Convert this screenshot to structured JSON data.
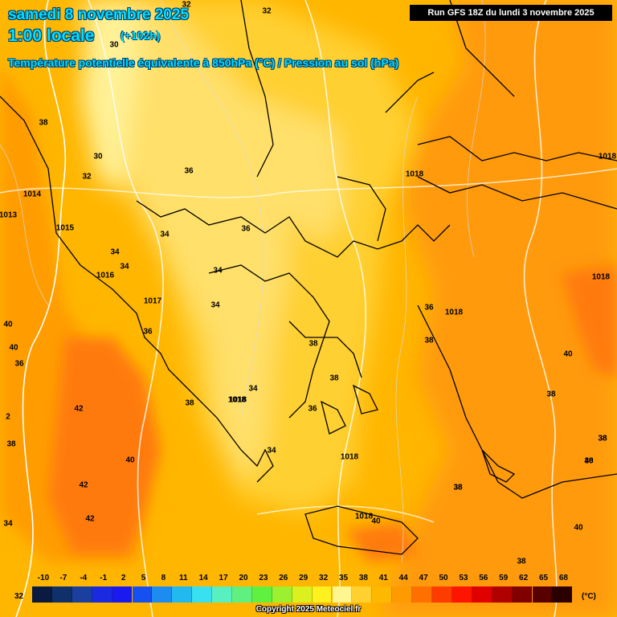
{
  "header": {
    "date": "samedi 8 novembre 2025",
    "time": "1:00 locale",
    "offset": "(+102h)",
    "parameter": "Température potentielle équivalente à 850hPa (°C) / Pression au sol (hPa)"
  },
  "run_info": "Run GFS 18Z du lundi 3 novembre 2025",
  "copyright": "Copyright 2025 Meteociel.fr",
  "legend": {
    "unit": "(°C)",
    "corner_value": "32",
    "ticks": [
      "-10",
      "-7",
      "-4",
      "-1",
      "2",
      "5",
      "8",
      "11",
      "14",
      "17",
      "20",
      "23",
      "26",
      "29",
      "32",
      "35",
      "38",
      "41",
      "44",
      "47",
      "50",
      "53",
      "56",
      "59",
      "62",
      "65",
      "68"
    ],
    "colors": [
      "#0a1a40",
      "#10306a",
      "#1a3fa0",
      "#1b2ae0",
      "#1a1af0",
      "#1650f0",
      "#1c8cf0",
      "#22b8f0",
      "#38e0f0",
      "#58f0c0",
      "#60f080",
      "#60f040",
      "#9cf030",
      "#dcf020",
      "#fff020",
      "#fff690",
      "#ffd030",
      "#ffb800",
      "#ff9a00",
      "#ff7000",
      "#ff3c00",
      "#ff1400",
      "#e00000",
      "#b00000",
      "#800000",
      "#580000",
      "#2a0000"
    ]
  },
  "map_labels": {
    "theta_e": [
      {
        "text": "32"
      },
      {
        "text": "32"
      },
      {
        "text": "38"
      },
      {
        "text": "30"
      },
      {
        "text": "32"
      },
      {
        "text": "30"
      },
      {
        "text": "36"
      },
      {
        "text": "34"
      },
      {
        "text": "36"
      },
      {
        "text": "34"
      },
      {
        "text": "34"
      },
      {
        "text": "34"
      },
      {
        "text": "34"
      },
      {
        "text": "36"
      },
      {
        "text": "38"
      },
      {
        "text": "36"
      },
      {
        "text": "38"
      },
      {
        "text": "34"
      },
      {
        "text": "36"
      },
      {
        "text": "38"
      },
      {
        "text": "40"
      },
      {
        "text": "38"
      },
      {
        "text": "38"
      },
      {
        "text": "40"
      },
      {
        "text": "42"
      },
      {
        "text": "40"
      },
      {
        "text": "42"
      },
      {
        "text": "42"
      },
      {
        "text": "38"
      },
      {
        "text": "40"
      },
      {
        "text": "38"
      },
      {
        "text": "38"
      },
      {
        "text": "38"
      },
      {
        "text": "34"
      },
      {
        "text": "40"
      },
      {
        "text": "36"
      },
      {
        "text": "2"
      },
      {
        "text": "40"
      },
      {
        "text": "38"
      },
      {
        "text": "38"
      },
      {
        "text": "38"
      },
      {
        "text": "40"
      }
    ],
    "pressure": [
      {
        "text": "1014"
      },
      {
        "text": "1015"
      },
      {
        "text": "1016"
      },
      {
        "text": "1017"
      },
      {
        "text": "1013"
      },
      {
        "text": "1018"
      },
      {
        "text": "1018"
      },
      {
        "text": "1018"
      },
      {
        "text": "1018"
      },
      {
        "text": "1018"
      },
      {
        "text": "1018"
      },
      {
        "text": "1018"
      },
      {
        "text": "1018"
      },
      {
        "text": "34"
      }
    ]
  }
}
